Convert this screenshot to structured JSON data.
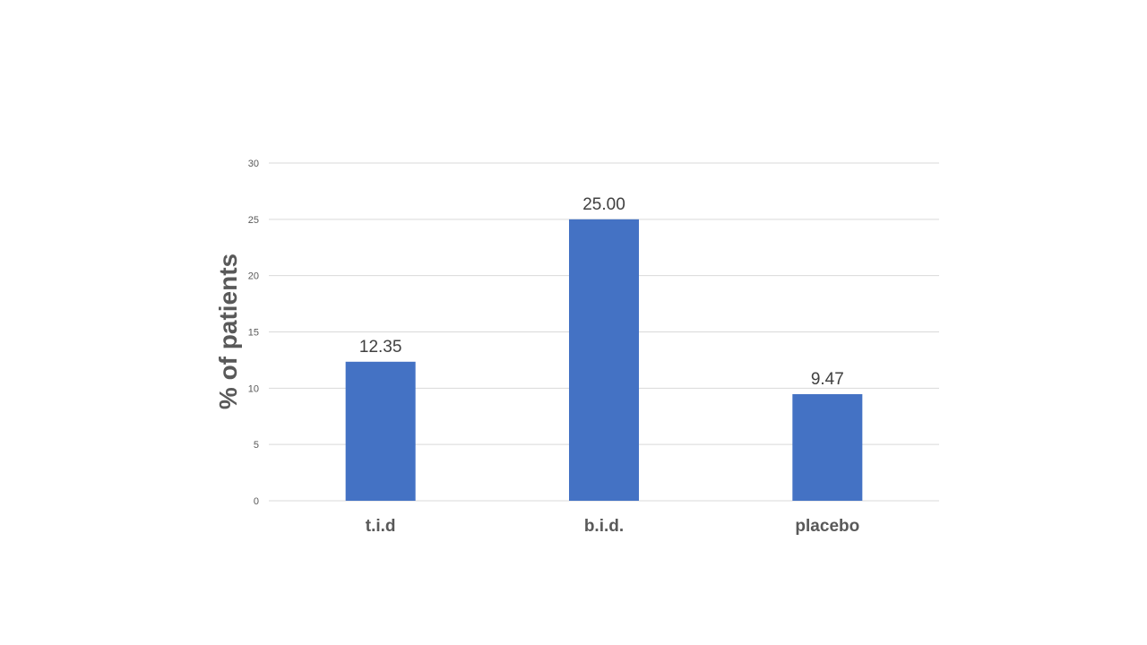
{
  "chart_data": {
    "type": "bar",
    "categories": [
      "t.i.d",
      "b.i.d.",
      "placebo"
    ],
    "values": [
      12.35,
      25.0,
      9.47
    ],
    "data_labels": [
      "12.35",
      "25.00",
      "9.47"
    ],
    "title": "",
    "xlabel": "",
    "ylabel": "% of patients",
    "ylim": [
      0,
      30
    ],
    "yticks": [
      "0",
      "5",
      "10",
      "15",
      "20",
      "25",
      "30"
    ],
    "grid": true,
    "legend": "none",
    "bar_color": "#4472c4"
  }
}
